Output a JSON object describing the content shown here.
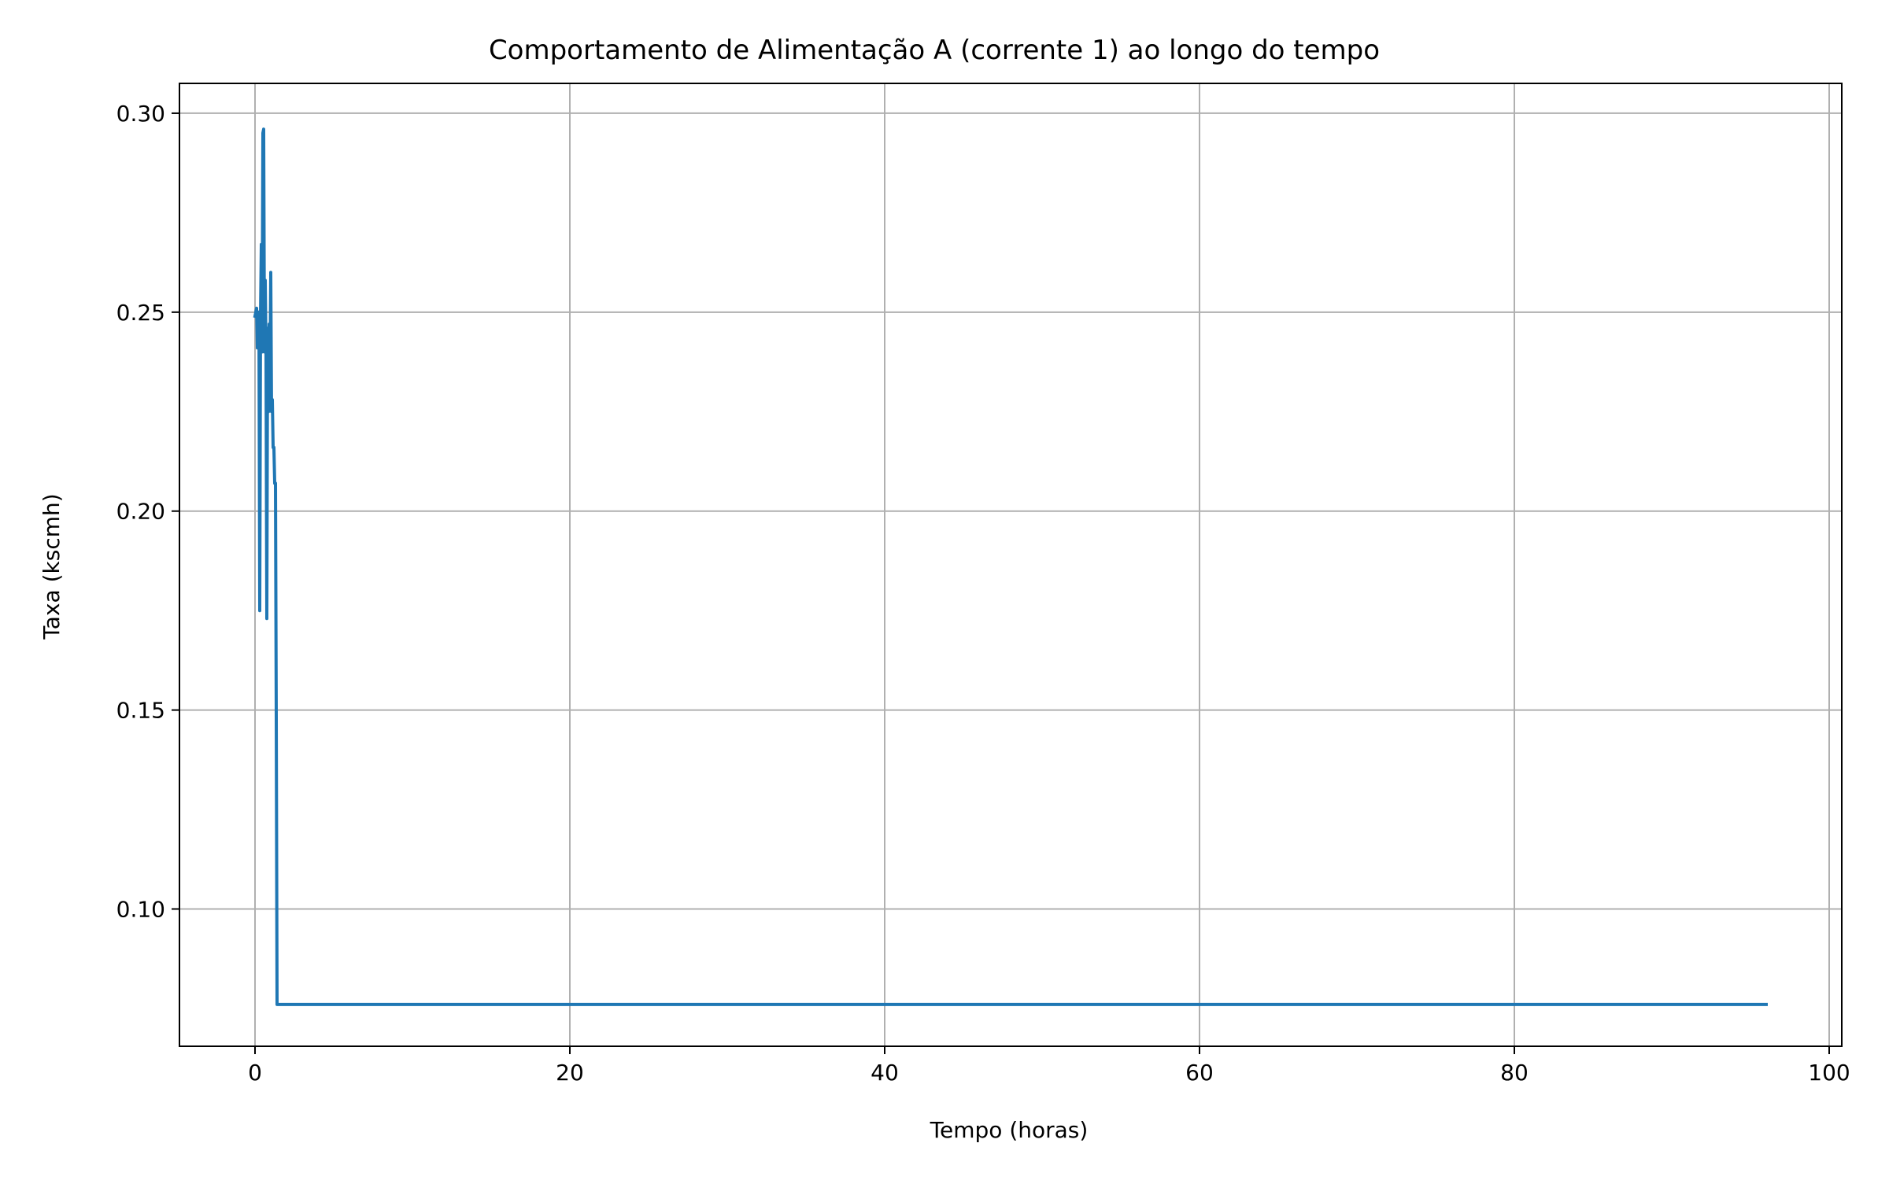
{
  "chart_data": {
    "type": "line",
    "title": "Comportamento de Alimentação A (corrente 1) ao longo do tempo",
    "xlabel": "Tempo (horas)",
    "ylabel": "Taxa (kscmh)",
    "xlim": [
      -4.8,
      100.8
    ],
    "ylim": [
      0.0655,
      0.3075
    ],
    "grid": true,
    "x_ticks": [
      0,
      20,
      40,
      60,
      80,
      100
    ],
    "x_tick_labels": [
      "0",
      "20",
      "40",
      "60",
      "80",
      "100"
    ],
    "y_ticks": [
      0.1,
      0.15,
      0.2,
      0.25,
      0.3
    ],
    "y_tick_labels": [
      "0.10",
      "0.15",
      "0.20",
      "0.25",
      "0.30"
    ],
    "series": [
      {
        "color": "#1f77b4",
        "x": [
          0.0,
          0.1,
          0.15,
          0.2,
          0.25,
          0.3,
          0.35,
          0.4,
          0.45,
          0.5,
          0.55,
          0.6,
          0.65,
          0.7,
          0.75,
          0.8,
          0.85,
          0.9,
          0.95,
          1.0,
          1.05,
          1.1,
          1.15,
          1.2,
          1.25,
          1.3,
          1.35,
          1.4,
          1.45,
          1.5,
          1.55,
          1.6,
          1.65,
          1.7,
          1.75,
          1.8,
          1.85,
          1.9,
          1.95,
          2.0,
          96.0
        ],
        "y": [
          0.249,
          0.251,
          0.241,
          0.25,
          0.25,
          0.175,
          0.249,
          0.267,
          0.24,
          0.295,
          0.296,
          0.24,
          0.258,
          0.239,
          0.173,
          0.246,
          0.225,
          0.247,
          0.231,
          0.26,
          0.225,
          0.228,
          0.216,
          0.216,
          0.207,
          0.207,
          0.148,
          0.076,
          0.076,
          0.076,
          0.076,
          0.076,
          0.076,
          0.076,
          0.076,
          0.076,
          0.076,
          0.076,
          0.076,
          0.076,
          0.076
        ]
      }
    ]
  }
}
